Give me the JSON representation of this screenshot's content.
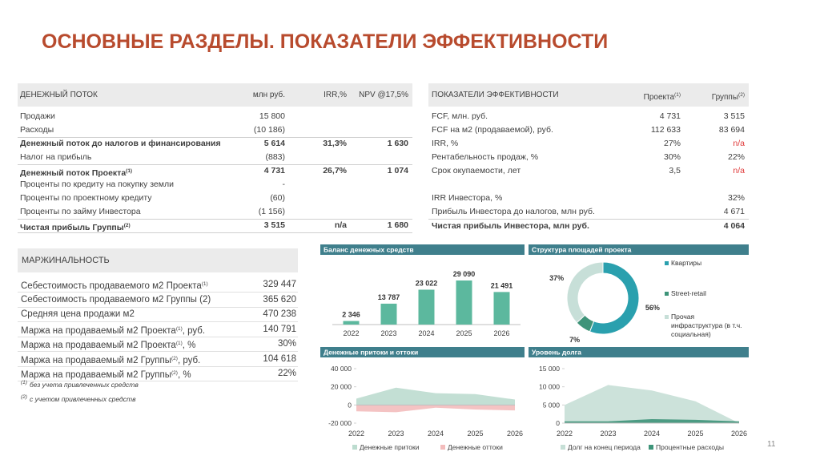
{
  "title": "ОСНОВНЫЕ РАЗДЕЛЫ. ПОКАЗАТЕЛИ ЭФФЕКТИВНОСТИ",
  "cash_flow": {
    "columns": [
      "ДЕНЕЖНЫЙ ПОТОК",
      "млн руб.",
      "IRR,%",
      "NPV @17,5%"
    ],
    "rows": [
      {
        "label": "Продажи",
        "cells": [
          "15 800",
          null,
          null
        ]
      },
      {
        "label": "Расходы",
        "cells": [
          "(10 186)",
          null,
          null
        ]
      },
      {
        "label": "Денежный поток до налогов и финансирования",
        "cells": [
          "5 614",
          "31,3%",
          "1 630"
        ]
      },
      {
        "label": "Налог на прибыль",
        "cells": [
          "(883)",
          null,
          null
        ]
      },
      {
        "label": "Денежный поток Проекта",
        "sup": "(1)",
        "cells": [
          "4 731",
          "26,7%",
          "1 074"
        ]
      },
      {
        "label": "Проценты по кредиту на покупку земли",
        "cells": [
          "-",
          null,
          null
        ]
      },
      {
        "label": "Проценты по проектному кредиту",
        "cells": [
          "(60)",
          null,
          null
        ]
      },
      {
        "label": "Проценты по займу Инвестора",
        "cells": [
          "(1 156)",
          null,
          null
        ]
      },
      {
        "label": "Чистая прибыль Группы",
        "sup": "(2)",
        "cells": [
          "3 515",
          "n/a",
          "1 680"
        ]
      }
    ]
  },
  "efficiency": {
    "columns": [
      {
        "text": "ПОКАЗАТЕЛИ ЭФФЕКТИВНОСТИ"
      },
      {
        "text": "Проекта",
        "sup": "(1)"
      },
      {
        "text": "Группы",
        "sup": "(2)"
      }
    ],
    "rows": [
      {
        "label": "FCF, млн. руб.",
        "cells": [
          "4 731",
          "3 515"
        ]
      },
      {
        "label": "FCF на м2 (продаваемой), руб.",
        "cells": [
          "112 633",
          "83 694"
        ]
      },
      {
        "label": "IRR, %",
        "cells": [
          "27%",
          "n/a"
        ]
      },
      {
        "label": "Рентабельность продаж, %",
        "cells": [
          "30%",
          "22%"
        ]
      },
      {
        "label": "Срок окупаемости, лет",
        "cells": [
          "3,5",
          "n/a"
        ]
      }
    ],
    "investor_rows": [
      {
        "label": "IRR Инвестора, %",
        "cells": [
          null,
          "32%"
        ]
      },
      {
        "label": "Прибыль Инвестора до налогов, млн руб.",
        "cells": [
          null,
          "4 671"
        ]
      },
      {
        "label": "Чистая прибыль Инвестора, млн руб.",
        "cells": [
          null,
          "4 064"
        ]
      }
    ]
  },
  "margin": {
    "header": "МАРЖИНАЛЬНОСТЬ",
    "rows": [
      {
        "label": "Себестоимость продаваемого м2 Проекта",
        "sup": "(1)",
        "value": "329 447"
      },
      {
        "label": "Себестоимость продаваемого м2 Группы (2)",
        "value": "365 620"
      },
      {
        "label": "Средняя цена продажи м2",
        "value": "470 238"
      },
      {
        "label": "Маржа на продаваемый м2 Проекта",
        "sup": "(1)",
        "tail": ", руб.",
        "value": "140 791"
      },
      {
        "label": "Маржа на продаваемый м2 Проекта",
        "sup": "(1)",
        "tail": ", %",
        "value": "30%"
      },
      {
        "label": "Маржа на продаваемый м2 Группы",
        "sup": "(2)",
        "tail": ", руб.",
        "value": "104 618"
      },
      {
        "label": "Маржа на продаваемый м2 Группы",
        "sup": "(2)",
        "tail": ", %",
        "value": "22%"
      }
    ],
    "footnotes": [
      {
        "sup": "(1)",
        "text": "без учета привлеченных средств"
      },
      {
        "sup": "(2)",
        "text": "с учетом привлеченных средств"
      }
    ]
  },
  "chart_data": [
    {
      "type": "bar",
      "title": "Баланс денежных средств",
      "categories": [
        "2022",
        "2023",
        "2024",
        "2025",
        "2026"
      ],
      "values": [
        2346,
        13787,
        23022,
        29090,
        21491
      ],
      "value_labels": [
        "2 346",
        "13 787",
        "23 022",
        "29 090",
        "21 491"
      ],
      "color": "#5cb89e"
    },
    {
      "type": "pie",
      "title": "Структура площадей проекта",
      "categories": [
        "Квартиры",
        "Street-retail",
        "Прочая инфраструктура (в т.ч. социальная)"
      ],
      "values": [
        56,
        7,
        37
      ],
      "value_labels": [
        "56%",
        "7%",
        "37%"
      ],
      "colors": [
        "#2aa0ae",
        "#3e9479",
        "#c7dfd8"
      ]
    },
    {
      "type": "area",
      "title": "Денежные притоки и оттоки",
      "categories": [
        "2022",
        "2023",
        "2024",
        "2025",
        "2026"
      ],
      "ylim": [
        -20000,
        40000
      ],
      "yticks": [
        {
          "value": -20000,
          "label": "-20 000"
        },
        0,
        {
          "value": 20000,
          "label": "20 000"
        },
        {
          "value": 40000,
          "label": "40 000"
        }
      ],
      "series": [
        {
          "name": "Денежные притоки",
          "color": "#bcdccf",
          "values": [
            7000,
            19000,
            13000,
            12000,
            6000
          ]
        },
        {
          "name": "Денежные оттоки",
          "color": "#f3bcbc",
          "values": [
            -7000,
            -8000,
            -3000,
            -5000,
            -6000
          ]
        }
      ]
    },
    {
      "type": "area",
      "title": "Уровень долга",
      "categories": [
        "2022",
        "2023",
        "2024",
        "2025",
        "2026"
      ],
      "ylim": [
        0,
        15000
      ],
      "yticks": [
        0,
        {
          "value": 5000,
          "label": "5 000"
        },
        {
          "value": 10000,
          "label": "10 000"
        },
        {
          "value": 15000,
          "label": "15 000"
        }
      ],
      "series": [
        {
          "name": "Долг на конец периода",
          "color": "#c6dfd6",
          "values": [
            5000,
            10500,
            9000,
            6000,
            0
          ]
        },
        {
          "name": "Процентные расходы",
          "color": "#3e9479",
          "values": [
            500,
            500,
            1100,
            900,
            500
          ]
        }
      ]
    }
  ],
  "page_number": "11"
}
